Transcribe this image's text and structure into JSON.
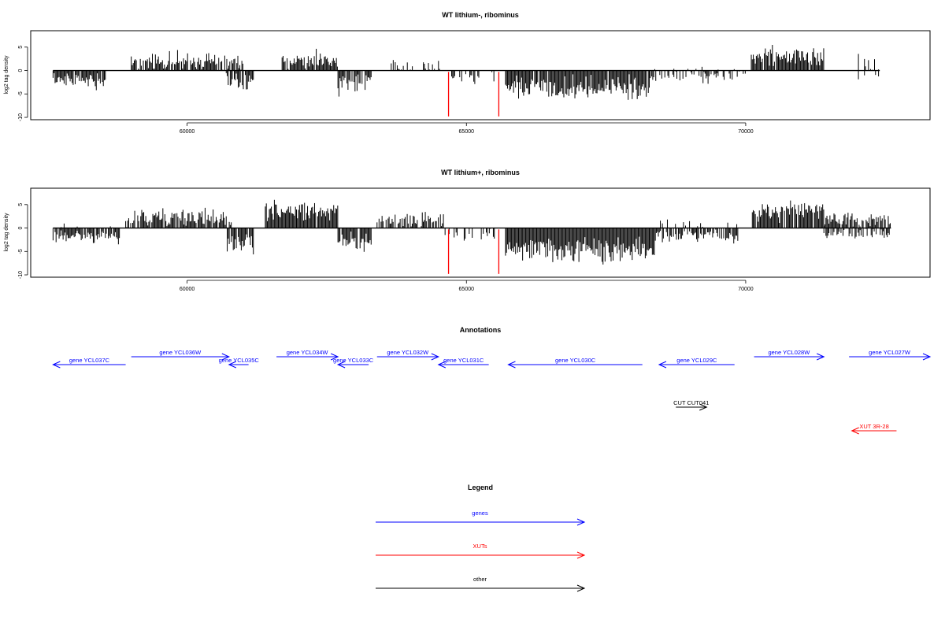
{
  "chart_data": [
    {
      "type": "bar",
      "title": "WT lithium-, ribominus",
      "ylabel": "log2 tag density",
      "xlabel": "",
      "xlim": [
        57200,
        73300
      ],
      "ylim": [
        -10.5,
        8.5
      ],
      "x_ticks": [
        60000,
        65000,
        70000
      ],
      "y_ticks": [
        5,
        0,
        -5,
        -10
      ],
      "grid": false,
      "highlight_color": "#ff0000",
      "highlights": [
        {
          "x": 64680,
          "y0": -0.3,
          "y1": -9.8
        },
        {
          "x": 65580,
          "y0": -0.3,
          "y1": -9.8
        }
      ],
      "segments": [
        {
          "from": 57600,
          "to": 58550,
          "sign": -1,
          "mean": 1.9,
          "var": 1.2,
          "fill": 0.9
        },
        {
          "from": 59000,
          "to": 61000,
          "sign": 1,
          "mean": 1.7,
          "var": 1.4,
          "fill": 0.85
        },
        {
          "from": 60700,
          "to": 61200,
          "sign": -1,
          "mean": 2.4,
          "var": 1.3,
          "fill": 0.9
        },
        {
          "from": 61700,
          "to": 62700,
          "sign": 1,
          "mean": 2.2,
          "var": 1.3,
          "fill": 0.9
        },
        {
          "from": 62700,
          "to": 63300,
          "sign": -1,
          "mean": 2.7,
          "var": 1.4,
          "fill": 0.85
        },
        {
          "from": 63600,
          "to": 64600,
          "sign": 1,
          "mean": 1.3,
          "var": 1.2,
          "fill": 0.35
        },
        {
          "from": 64700,
          "to": 65500,
          "sign": -1,
          "mean": 1.4,
          "var": 1.0,
          "fill": 0.35
        },
        {
          "from": 65700,
          "to": 68300,
          "sign": -1,
          "mean": 3.8,
          "var": 1.8,
          "fill": 0.97
        },
        {
          "from": 68300,
          "to": 70000,
          "sign": -1,
          "mean": 1.3,
          "var": 0.9,
          "fill": 0.45
        },
        {
          "from": 68300,
          "to": 70000,
          "sign": 1,
          "mean": 0.5,
          "var": 1.5,
          "fill": 0.08
        },
        {
          "from": 70100,
          "to": 71400,
          "sign": 1,
          "mean": 3.0,
          "var": 1.5,
          "fill": 0.95
        },
        {
          "from": 72000,
          "to": 72400,
          "sign": 1,
          "mean": 1.4,
          "var": 1.5,
          "fill": 0.25
        },
        {
          "from": 72000,
          "to": 72400,
          "sign": -1,
          "mean": 1.2,
          "var": 1.0,
          "fill": 0.2
        }
      ]
    },
    {
      "type": "bar",
      "title": "WT lithium+, ribominus",
      "ylabel": "log2 tag density",
      "xlabel": "",
      "xlim": [
        57200,
        73300
      ],
      "ylim": [
        -10.5,
        8.5
      ],
      "x_ticks": [
        60000,
        65000,
        70000
      ],
      "y_ticks": [
        5,
        0,
        -5,
        -10
      ],
      "grid": false,
      "highlight_color": "#ff0000",
      "highlights": [
        {
          "x": 64680,
          "y0": -0.3,
          "y1": -9.8
        },
        {
          "x": 65580,
          "y0": -0.3,
          "y1": -9.8
        }
      ],
      "segments": [
        {
          "from": 57600,
          "to": 58800,
          "sign": -1,
          "mean": 1.8,
          "var": 1.1,
          "fill": 0.85
        },
        {
          "from": 57600,
          "to": 58800,
          "sign": 1,
          "mean": 0.6,
          "var": 1.2,
          "fill": 0.1
        },
        {
          "from": 58900,
          "to": 60800,
          "sign": 1,
          "mean": 2.0,
          "var": 1.5,
          "fill": 0.85
        },
        {
          "from": 60700,
          "to": 61200,
          "sign": -1,
          "mean": 3.5,
          "var": 1.6,
          "fill": 0.95
        },
        {
          "from": 61400,
          "to": 62700,
          "sign": 1,
          "mean": 3.6,
          "var": 1.6,
          "fill": 0.97
        },
        {
          "from": 62700,
          "to": 63300,
          "sign": -1,
          "mean": 3.0,
          "var": 1.6,
          "fill": 0.9
        },
        {
          "from": 63400,
          "to": 64600,
          "sign": 1,
          "mean": 1.8,
          "var": 1.2,
          "fill": 0.8
        },
        {
          "from": 64600,
          "to": 65600,
          "sign": -1,
          "mean": 1.6,
          "var": 1.0,
          "fill": 0.4
        },
        {
          "from": 65700,
          "to": 68400,
          "sign": -1,
          "mean": 4.6,
          "var": 1.8,
          "fill": 0.98
        },
        {
          "from": 68400,
          "to": 69900,
          "sign": -1,
          "mean": 1.8,
          "var": 1.0,
          "fill": 0.8
        },
        {
          "from": 68400,
          "to": 69900,
          "sign": 1,
          "mean": 0.9,
          "var": 1.2,
          "fill": 0.15
        },
        {
          "from": 70100,
          "to": 71400,
          "sign": 1,
          "mean": 3.6,
          "var": 1.6,
          "fill": 0.97
        },
        {
          "from": 71400,
          "to": 72600,
          "sign": 1,
          "mean": 1.8,
          "var": 1.0,
          "fill": 0.8
        },
        {
          "from": 71400,
          "to": 72600,
          "sign": -1,
          "mean": 1.2,
          "var": 1.0,
          "fill": 0.5
        }
      ]
    }
  ],
  "annotations": {
    "title": "Annotations",
    "colors": {
      "gene": "#0000ff",
      "xut": "#ff0000",
      "other": "#000000"
    },
    "features": [
      {
        "label": "gene YCL037C",
        "start": 57600,
        "end": 58900,
        "strand": "-",
        "row": 2,
        "kind": "gene"
      },
      {
        "label": "gene YCL036W",
        "start": 59000,
        "end": 60750,
        "strand": "+",
        "row": 1,
        "kind": "gene"
      },
      {
        "label": "gene YCL035C",
        "start": 60750,
        "end": 61100,
        "strand": "-",
        "row": 2,
        "kind": "gene"
      },
      {
        "label": "gene YCL034W",
        "start": 61600,
        "end": 62700,
        "strand": "+",
        "row": 1,
        "kind": "gene"
      },
      {
        "label": "gene YCL033C",
        "start": 62700,
        "end": 63250,
        "strand": "-",
        "row": 2,
        "kind": "gene"
      },
      {
        "label": "gene YCL032W",
        "start": 63400,
        "end": 64500,
        "strand": "+",
        "row": 1,
        "kind": "gene"
      },
      {
        "label": "gene YCL031C",
        "start": 64500,
        "end": 65400,
        "strand": "-",
        "row": 2,
        "kind": "gene"
      },
      {
        "label": "gene YCL030C",
        "start": 65750,
        "end": 68150,
        "strand": "-",
        "row": 2,
        "kind": "gene"
      },
      {
        "label": "gene YCL029C",
        "start": 68450,
        "end": 69800,
        "strand": "-",
        "row": 2,
        "kind": "gene"
      },
      {
        "label": "gene YCL028W",
        "start": 70150,
        "end": 71400,
        "strand": "+",
        "row": 1,
        "kind": "gene"
      },
      {
        "label": "gene YCL027W",
        "start": 71850,
        "end": 73300,
        "strand": "+",
        "row": 1,
        "kind": "gene"
      },
      {
        "label": "CUT CUT041",
        "start": 68750,
        "end": 69300,
        "strand": "+",
        "row": 3,
        "kind": "other"
      },
      {
        "label": "XUT 3R-28",
        "start": 71900,
        "end": 72700,
        "strand": "-",
        "row": 4,
        "kind": "xut"
      }
    ]
  },
  "legend": {
    "title": "Legend",
    "items": [
      {
        "label": "genes",
        "color": "#0000ff"
      },
      {
        "label": "XUTs",
        "color": "#ff0000"
      },
      {
        "label": "other",
        "color": "#000000"
      }
    ]
  }
}
